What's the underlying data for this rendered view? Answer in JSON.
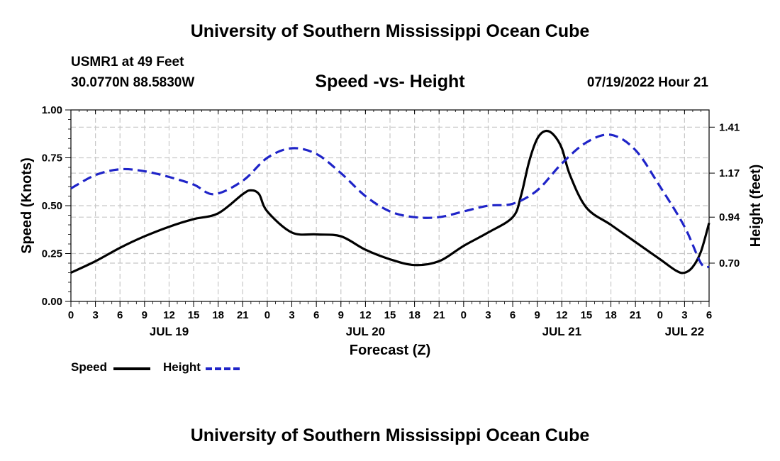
{
  "header": {
    "title": "University of Southern Mississippi Ocean Cube",
    "station": "USMR1 at 49 Feet",
    "coords": "30.0770N  88.5830W",
    "chart_title": "Speed -vs- Height",
    "datetime": "07/19/2022 Hour 21"
  },
  "footer": {
    "title": "University of Southern Mississippi Ocean Cube"
  },
  "legend": {
    "speed_label": "Speed",
    "height_label": "Height"
  },
  "colors": {
    "speed": "#000000",
    "height": "#1f24c8",
    "grid": "#c8c8c8"
  },
  "chart_data": {
    "type": "line",
    "title": "Speed -vs- Height",
    "xlabel": "Forecast (Z)",
    "ylabel": "Speed (Knots)",
    "y2label": "Height (feet)",
    "x_unit": "hours since Jul 19 00Z",
    "xlim": [
      0,
      78
    ],
    "ylim": [
      0,
      1.0
    ],
    "y2lim": [
      0.5,
      1.5
    ],
    "x_ticks": [
      0,
      3,
      6,
      9,
      12,
      15,
      18,
      21,
      24,
      27,
      30,
      33,
      36,
      39,
      42,
      45,
      48,
      51,
      54,
      57,
      60,
      63,
      66,
      69,
      72,
      75,
      78
    ],
    "x_tick_labels": [
      "0",
      "3",
      "6",
      "9",
      "12",
      "15",
      "18",
      "21",
      "0",
      "3",
      "6",
      "9",
      "12",
      "15",
      "18",
      "21",
      "0",
      "3",
      "6",
      "9",
      "12",
      "15",
      "18",
      "21",
      "0",
      "3",
      "6"
    ],
    "y_ticks": [
      0,
      0.25,
      0.5,
      0.75,
      1.0
    ],
    "y_tick_labels": [
      "0.00",
      "0.25",
      "0.50",
      "0.75",
      "1.00"
    ],
    "y2_ticks": [
      0.7,
      0.94,
      1.17,
      1.41
    ],
    "y2_tick_labels": [
      "0.70",
      "0.94",
      "1.17",
      "1.41"
    ],
    "date_labels": [
      {
        "x": 12,
        "label": "JUL 19"
      },
      {
        "x": 36,
        "label": "JUL 20"
      },
      {
        "x": 60,
        "label": "JUL 21"
      },
      {
        "x": 75,
        "label": "JUL 22"
      }
    ],
    "series": [
      {
        "name": "Speed",
        "axis": "left",
        "style": "solid",
        "x": [
          0,
          3,
          6,
          9,
          12,
          15,
          18,
          21,
          22,
          23,
          24,
          27,
          30,
          33,
          36,
          39,
          42,
          45,
          48,
          51,
          54,
          55,
          56,
          57,
          58,
          59,
          60,
          61,
          63,
          66,
          69,
          72,
          74,
          75,
          76,
          77,
          78
        ],
        "values": [
          0.15,
          0.21,
          0.28,
          0.34,
          0.39,
          0.43,
          0.46,
          0.56,
          0.58,
          0.56,
          0.47,
          0.36,
          0.35,
          0.34,
          0.27,
          0.22,
          0.19,
          0.21,
          0.29,
          0.36,
          0.44,
          0.55,
          0.73,
          0.85,
          0.89,
          0.87,
          0.8,
          0.66,
          0.49,
          0.4,
          0.31,
          0.22,
          0.16,
          0.15,
          0.18,
          0.26,
          0.41
        ]
      },
      {
        "name": "Height",
        "axis": "right",
        "style": "dashed",
        "x": [
          0,
          3,
          6,
          9,
          12,
          15,
          17.5,
          21,
          24,
          27,
          30,
          33,
          36,
          39,
          42,
          45,
          48,
          51,
          54,
          57,
          60,
          63,
          66,
          69,
          72,
          75,
          77,
          78
        ],
        "values": [
          1.09,
          1.16,
          1.19,
          1.18,
          1.15,
          1.11,
          1.06,
          1.13,
          1.25,
          1.3,
          1.27,
          1.17,
          1.05,
          0.97,
          0.94,
          0.94,
          0.97,
          1.0,
          1.01,
          1.08,
          1.22,
          1.33,
          1.37,
          1.29,
          1.1,
          0.89,
          0.7,
          0.68
        ]
      }
    ]
  }
}
